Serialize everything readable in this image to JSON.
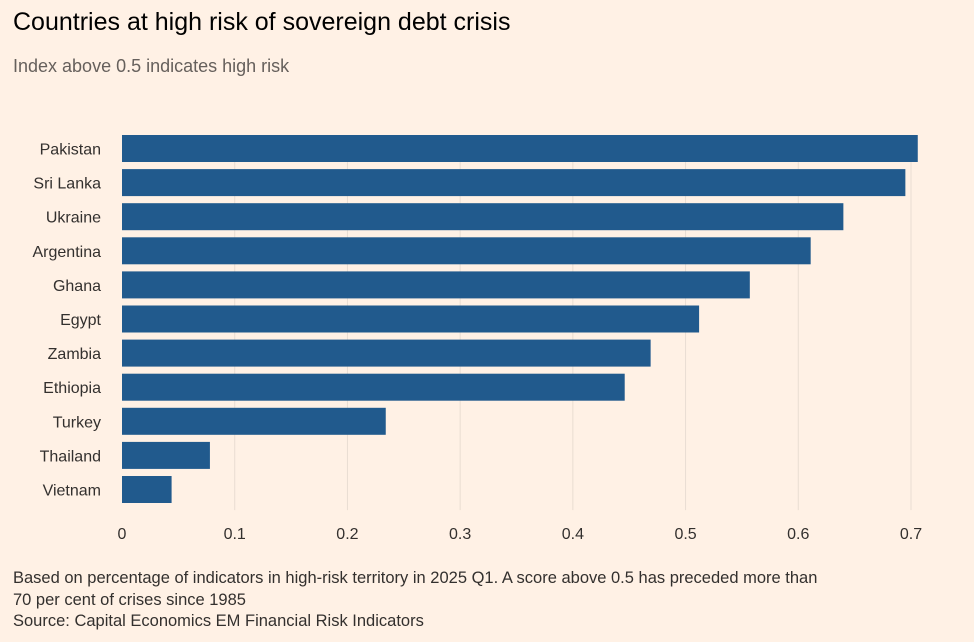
{
  "chart_data": {
    "type": "bar",
    "orientation": "horizontal",
    "title": "Countries at high risk of sovereign debt crisis",
    "subtitle": "Index above 0.5 indicates high risk",
    "categories": [
      "Pakistan",
      "Sri Lanka",
      "Ukraine",
      "Argentina",
      "Ghana",
      "Egypt",
      "Zambia",
      "Ethiopia",
      "Turkey",
      "Thailand",
      "Vietnam"
    ],
    "values": [
      0.706,
      0.695,
      0.64,
      0.611,
      0.557,
      0.512,
      0.469,
      0.446,
      0.234,
      0.078,
      0.044
    ],
    "xlim": [
      0,
      0.7
    ],
    "xticks": [
      "0",
      "0.1",
      "0.2",
      "0.3",
      "0.4",
      "0.5",
      "0.6",
      "0.7"
    ],
    "xtick_values": [
      0,
      0.1,
      0.2,
      0.3,
      0.4,
      0.5,
      0.6,
      0.7
    ],
    "grid": "vertical",
    "bar_color": "#215a8d"
  },
  "footer": {
    "note_line1": "Based on percentage of indicators in high-risk territory in 2025 Q1. A score above 0.5 has preceded more than",
    "note_line2": "70 per cent of crises since 1985",
    "source": "Source: Capital Economics EM Financial Risk Indicators"
  }
}
